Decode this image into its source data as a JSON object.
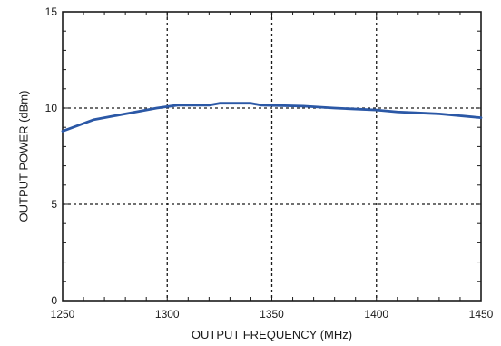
{
  "chart_data": {
    "type": "line",
    "title": "",
    "xlabel": "OUTPUT FREQUENCY (MHz)",
    "ylabel": "OUTPUT POWER (dBm)",
    "xlim": [
      1250,
      1450
    ],
    "ylim": [
      0,
      15
    ],
    "x_ticks": [
      1250,
      1300,
      1350,
      1400,
      1450
    ],
    "y_ticks": [
      0,
      5,
      10,
      15
    ],
    "x_tick_labels": [
      "1250",
      "1300",
      "1350",
      "1400",
      "1450"
    ],
    "y_tick_labels": [
      "0",
      "5",
      "10",
      "15"
    ],
    "grid": "dotted major gridlines",
    "series": [
      {
        "color": "#2b58a6",
        "x": [
          1250,
          1265,
          1280,
          1295,
          1305,
          1320,
          1325,
          1340,
          1345,
          1365,
          1380,
          1390,
          1400,
          1410,
          1420,
          1430,
          1440,
          1450
        ],
        "y": [
          8.8,
          9.4,
          9.7,
          10.0,
          10.15,
          10.15,
          10.25,
          10.25,
          10.15,
          10.1,
          10.0,
          9.95,
          9.9,
          9.8,
          9.75,
          9.7,
          9.6,
          9.5
        ]
      }
    ]
  }
}
